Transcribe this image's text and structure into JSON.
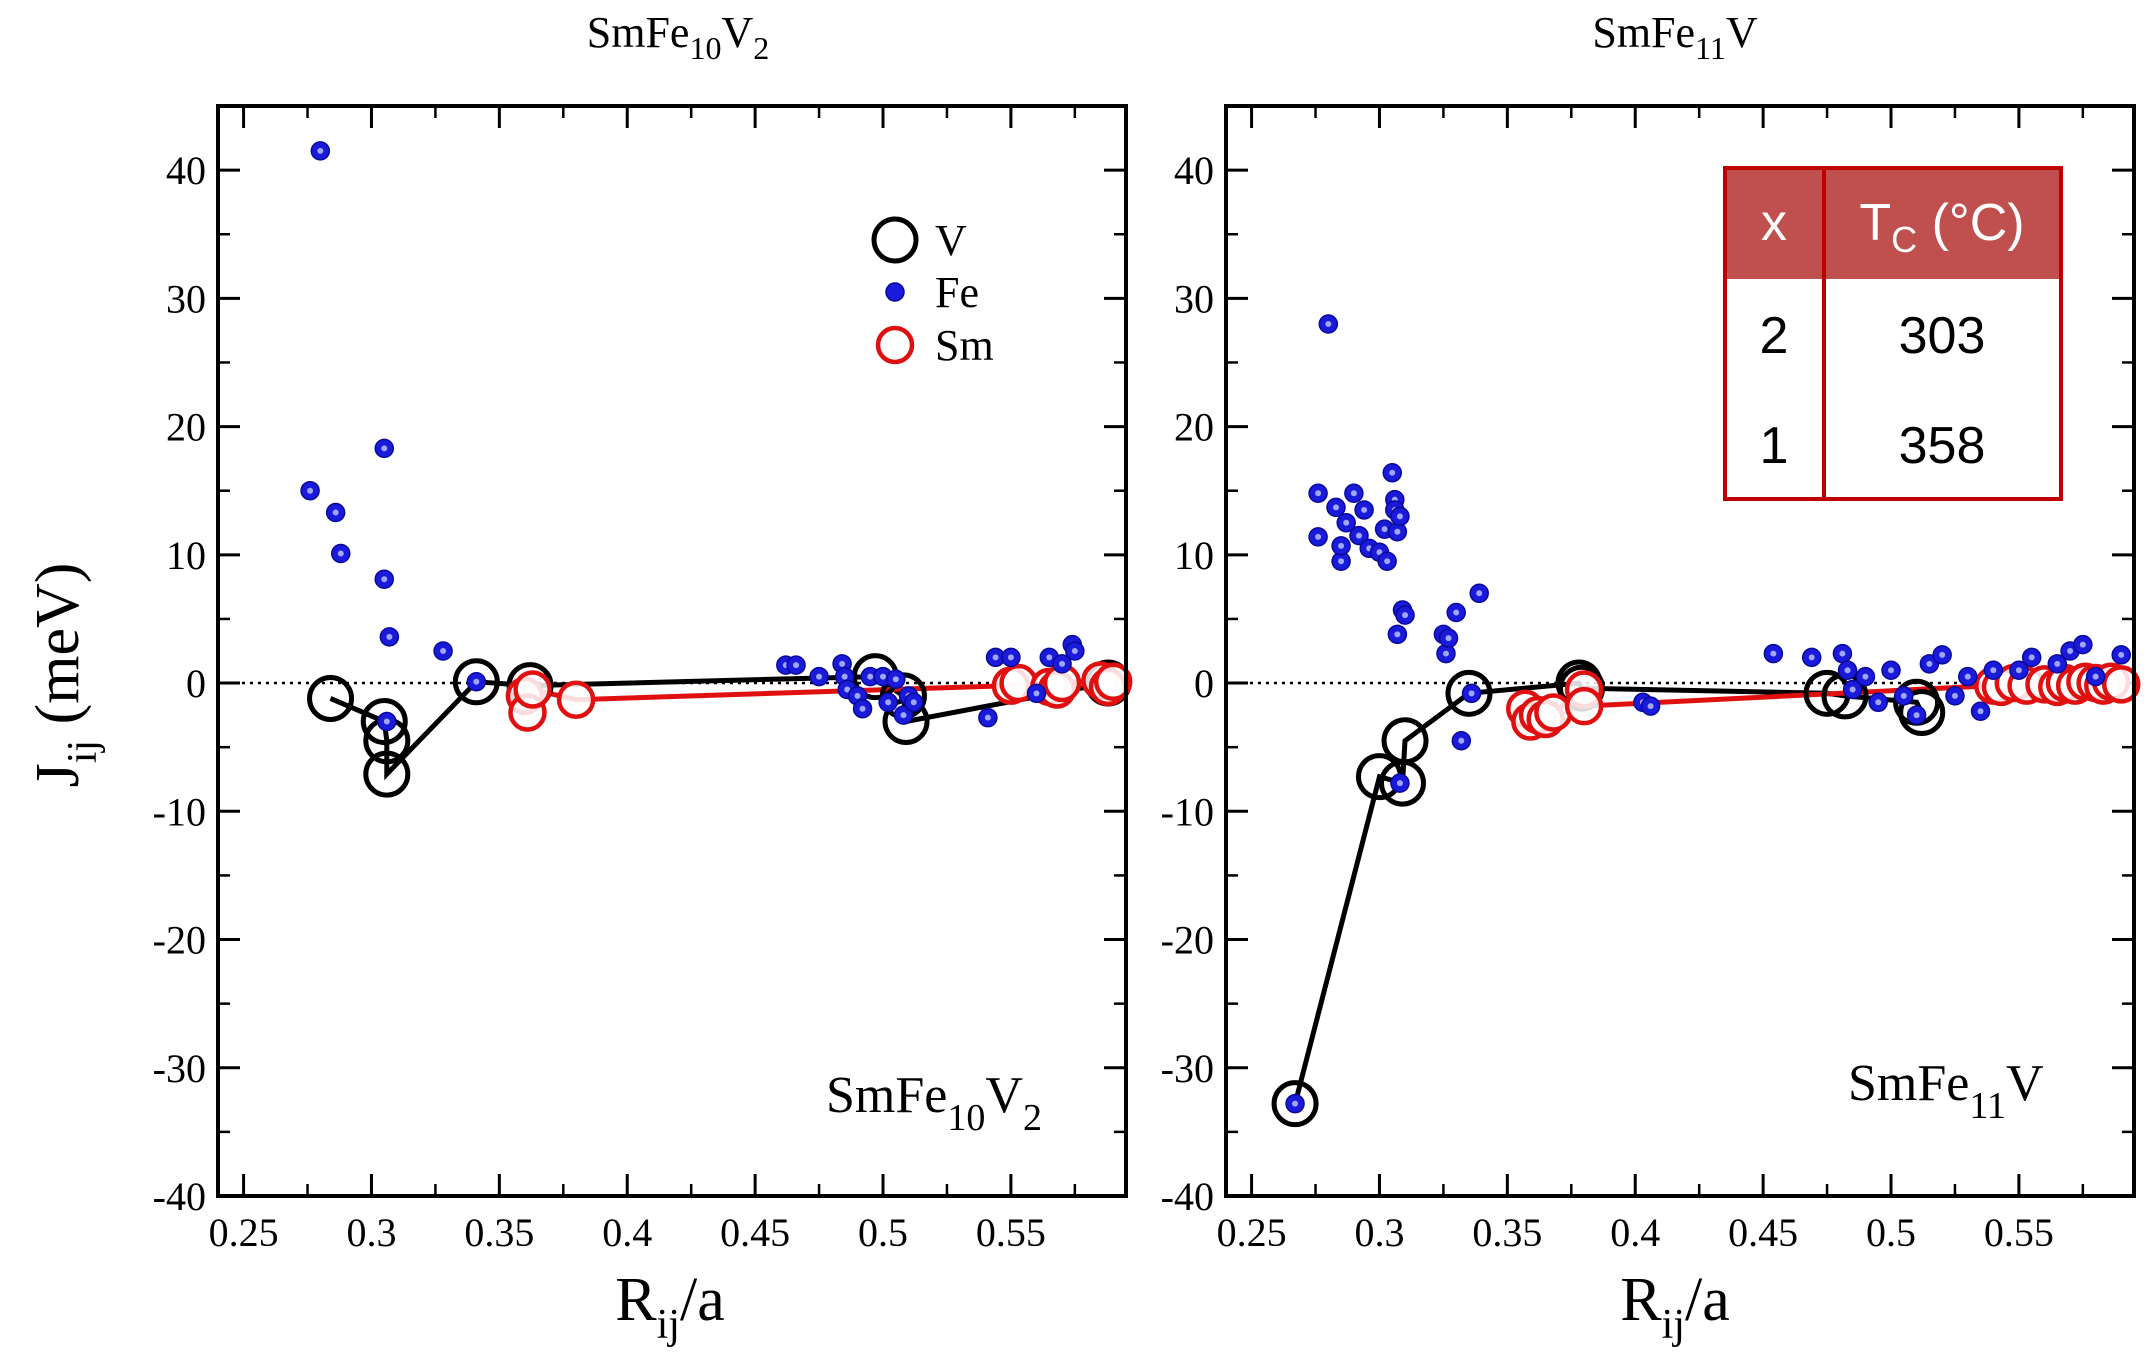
{
  "colors": {
    "V": "#000000",
    "Fe": "#1a1adb",
    "Sm": "#e01010",
    "table_header": "#c0504d",
    "table_border": "#c00000"
  },
  "chart_data": [
    {
      "type": "scatter",
      "title": {
        "base": "SmFe",
        "s1": "10",
        "mid": "V",
        "s2": "2"
      },
      "label": {
        "base": "SmFe",
        "s1": "10",
        "mid": "V",
        "s2": "2"
      },
      "xlabel": {
        "base": "R",
        "sub": "ij",
        "rest": "/a"
      },
      "ylabel": {
        "base": "J",
        "sub": "ij",
        "rest": " (meV)"
      },
      "xlim": [
        0.24,
        0.595
      ],
      "ylim": [
        -40,
        45
      ],
      "xticks": [
        0.25,
        0.3,
        0.35,
        0.4,
        0.45,
        0.5,
        0.55
      ],
      "xtick_labels": [
        "0.25",
        "0.3",
        "0.35",
        "0.4",
        "0.45",
        "0.5",
        "0.55"
      ],
      "yticks": [
        -40,
        -30,
        -20,
        -10,
        0,
        10,
        20,
        30,
        40
      ],
      "ytick_labels": [
        "-40",
        "-30",
        "-20",
        "-10",
        "0",
        "10",
        "20",
        "30",
        "40"
      ],
      "legend": {
        "position": "top-right",
        "entries": [
          "V",
          "Fe",
          "Sm"
        ]
      },
      "series": [
        {
          "name": "V",
          "marker": "open-circle-large",
          "x": [
            0.284,
            0.305,
            0.306,
            0.306,
            0.341,
            0.362,
            0.497,
            0.508,
            0.509,
            0.588
          ],
          "y": [
            -1.2,
            -3.0,
            -4.5,
            -7.1,
            0.1,
            -0.2,
            0.5,
            -1.0,
            -3.0,
            0.0
          ],
          "line": true
        },
        {
          "name": "Fe",
          "marker": "filled-dot",
          "x": [
            0.276,
            0.28,
            0.286,
            0.288,
            0.305,
            0.305,
            0.306,
            0.307,
            0.328,
            0.341,
            0.462,
            0.466,
            0.475,
            0.484,
            0.485,
            0.486,
            0.49,
            0.492,
            0.495,
            0.5,
            0.502,
            0.505,
            0.508,
            0.51,
            0.512,
            0.541,
            0.544,
            0.55,
            0.56,
            0.565,
            0.57,
            0.574,
            0.575
          ],
          "y": [
            15.0,
            41.5,
            13.3,
            10.1,
            18.3,
            8.1,
            -3.0,
            3.6,
            2.5,
            0.1,
            1.4,
            1.4,
            0.5,
            1.5,
            0.5,
            -0.5,
            -1.0,
            -2.0,
            0.5,
            0.5,
            -1.5,
            0.3,
            -2.5,
            -1.0,
            -1.5,
            -2.7,
            2.0,
            2.0,
            -0.8,
            2.0,
            1.5,
            3.0,
            2.5
          ],
          "line": false
        },
        {
          "name": "Sm",
          "marker": "open-circle",
          "x": [
            0.36,
            0.361,
            0.363,
            0.38,
            0.55,
            0.553,
            0.565,
            0.568,
            0.57,
            0.585,
            0.588,
            0.59
          ],
          "y": [
            -1.0,
            -2.3,
            -0.5,
            -1.3,
            -0.2,
            0.0,
            -0.3,
            -0.5,
            0.0,
            0.2,
            -0.3,
            0.1
          ],
          "line": true
        }
      ]
    },
    {
      "type": "scatter",
      "title": {
        "base": "SmFe",
        "s1": "11",
        "mid": "V",
        "s2": ""
      },
      "label": {
        "base": "SmFe",
        "s1": "11",
        "mid": "V",
        "s2": ""
      },
      "xlabel": {
        "base": "R",
        "sub": "ij",
        "rest": "/a"
      },
      "xlim": [
        0.24,
        0.595
      ],
      "ylim": [
        -40,
        45
      ],
      "xticks": [
        0.25,
        0.3,
        0.35,
        0.4,
        0.45,
        0.5,
        0.55
      ],
      "xtick_labels": [
        "0.25",
        "0.3",
        "0.35",
        "0.4",
        "0.45",
        "0.5",
        "0.55"
      ],
      "yticks": [
        -40,
        -30,
        -20,
        -10,
        0,
        10,
        20,
        30,
        40
      ],
      "ytick_labels": [
        "-40",
        "-30",
        "-20",
        "-10",
        "0",
        "10",
        "20",
        "30",
        "40"
      ],
      "series": [
        {
          "name": "V",
          "marker": "open-circle-large",
          "x": [
            0.267,
            0.3,
            0.309,
            0.31,
            0.335,
            0.378,
            0.379,
            0.475,
            0.482,
            0.51,
            0.512
          ],
          "y": [
            -32.8,
            -7.3,
            -7.8,
            -4.5,
            -0.8,
            0.0,
            -0.4,
            -0.8,
            -1.0,
            -1.5,
            -2.3
          ],
          "line": true
        },
        {
          "name": "Fe",
          "marker": "filled-dot",
          "x": [
            0.267,
            0.276,
            0.276,
            0.28,
            0.283,
            0.285,
            0.285,
            0.287,
            0.29,
            0.292,
            0.294,
            0.296,
            0.3,
            0.302,
            0.303,
            0.305,
            0.306,
            0.306,
            0.307,
            0.307,
            0.308,
            0.308,
            0.309,
            0.31,
            0.325,
            0.326,
            0.327,
            0.33,
            0.332,
            0.336,
            0.339,
            0.403,
            0.406,
            0.454,
            0.469,
            0.481,
            0.483,
            0.485,
            0.49,
            0.495,
            0.5,
            0.505,
            0.51,
            0.515,
            0.52,
            0.525,
            0.53,
            0.535,
            0.54,
            0.55,
            0.555,
            0.565,
            0.57,
            0.575,
            0.58,
            0.59
          ],
          "y": [
            -32.8,
            14.8,
            11.4,
            28.0,
            13.7,
            9.5,
            10.7,
            12.5,
            14.8,
            11.5,
            13.5,
            10.5,
            10.2,
            12.0,
            9.5,
            16.4,
            14.3,
            13.5,
            11.8,
            3.8,
            13.0,
            -7.8,
            5.7,
            5.3,
            3.8,
            2.3,
            3.5,
            5.5,
            -4.5,
            -0.8,
            7.0,
            -1.5,
            -1.8,
            2.3,
            2.0,
            2.3,
            1.0,
            -0.5,
            0.5,
            -1.5,
            1.0,
            -1.0,
            -2.5,
            1.5,
            2.2,
            -1.0,
            0.5,
            -2.2,
            1.0,
            1.0,
            2.0,
            1.5,
            2.5,
            3.0,
            0.5,
            2.2
          ],
          "line": false
        },
        {
          "name": "Sm",
          "marker": "open-circle",
          "x": [
            0.357,
            0.359,
            0.362,
            0.365,
            0.368,
            0.38,
            0.38,
            0.54,
            0.543,
            0.548,
            0.553,
            0.56,
            0.565,
            0.568,
            0.572,
            0.576,
            0.58,
            0.583,
            0.586,
            0.59
          ],
          "y": [
            -2.0,
            -3.0,
            -2.5,
            -2.8,
            -2.3,
            -0.5,
            -1.8,
            -0.2,
            -0.3,
            0.0,
            -0.2,
            -0.1,
            -0.3,
            0.0,
            -0.2,
            0.1,
            0.0,
            -0.2,
            0.1,
            -0.1
          ],
          "line": true
        }
      ]
    }
  ],
  "inset_table": {
    "headers": [
      "x",
      "T",
      "C",
      " (°C)"
    ],
    "rows": [
      {
        "x": "2",
        "tc": "303"
      },
      {
        "x": "1",
        "tc": "358"
      }
    ]
  }
}
